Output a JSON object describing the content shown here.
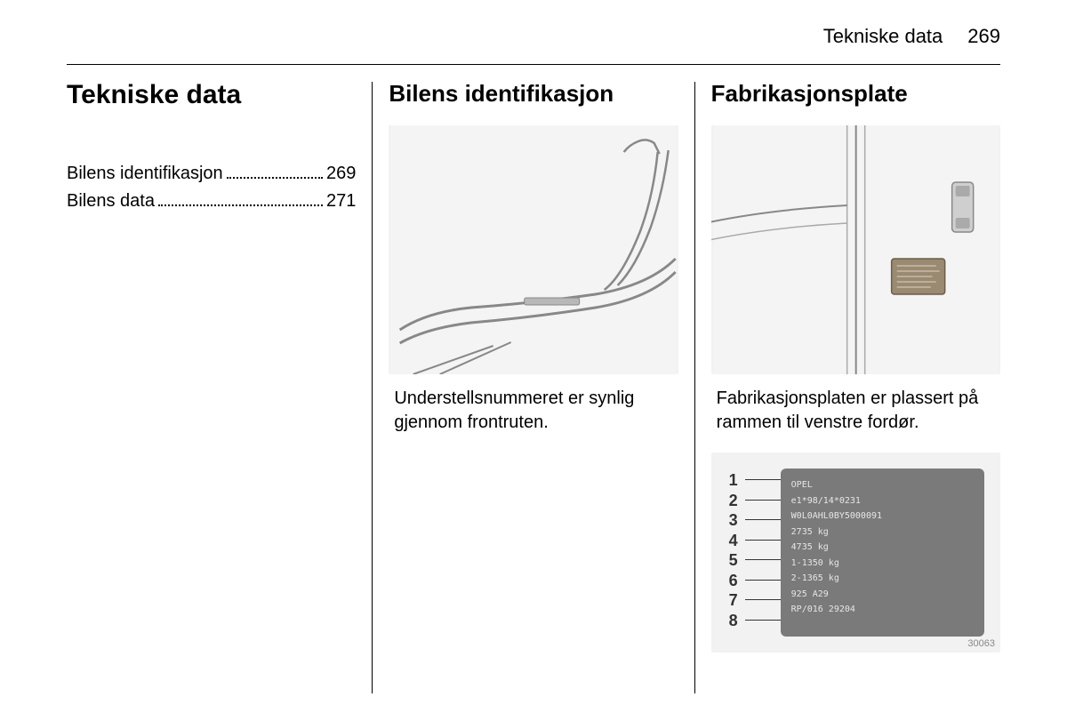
{
  "header": {
    "section_name": "Tekniske data",
    "page_number": "269"
  },
  "column1": {
    "title": "Tekniske data",
    "toc": [
      {
        "label": "Bilens identifikasjon",
        "page": "269"
      },
      {
        "label": "Bilens data",
        "page": "271"
      }
    ]
  },
  "column2": {
    "title": "Bilens identifikasjon",
    "text": "Understellsnummeret er synlig gjennom frontruten.",
    "illustration_bg": "#f0f0f0",
    "line_color": "#9aa0a6"
  },
  "column3": {
    "title": "Fabrikasjonsplate",
    "text": "Fabrikasjonsplaten er plassert på rammen til venstre fordør.",
    "illustration_bg": "#f0f0f0",
    "line_color": "#9aa0a6",
    "plate": {
      "numbers": [
        "1",
        "2",
        "3",
        "4",
        "5",
        "6",
        "7",
        "8"
      ],
      "lines": [
        "OPEL",
        "e1*98/14*0231",
        "W0L0AHL0BY5000091",
        "2735   kg",
        "4735   kg",
        "1-1350 kg",
        "2-1365 kg",
        "925                 A29",
        "RP/016                      29204"
      ],
      "image_id": "30063",
      "bg": "#7a7a7a",
      "text_color": "#e6e6e6"
    }
  }
}
